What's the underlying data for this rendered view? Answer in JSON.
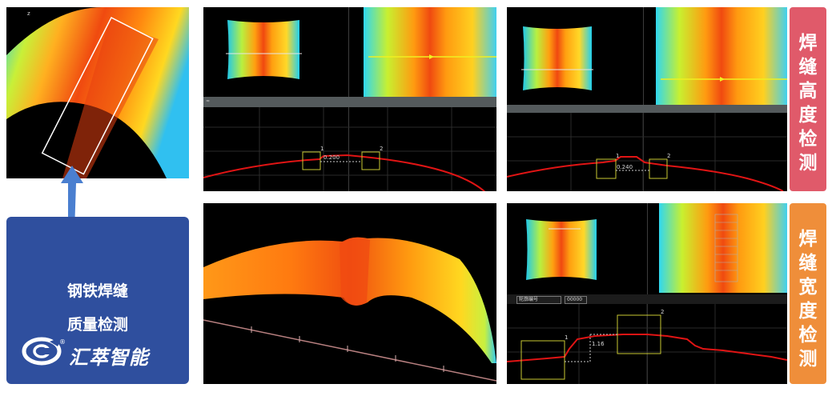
{
  "info_box": {
    "line1": "钢铁焊缝",
    "line2": "质量检测",
    "brand_name": "汇萃智能",
    "logo_icon": "c-swoosh-logo-icon",
    "reg_mark": "®",
    "color": "#2f4f9e"
  },
  "bands": {
    "height": {
      "chars": [
        "焊",
        "缝",
        "高",
        "度",
        "检",
        "测"
      ],
      "color": "#e05a6a"
    },
    "width": {
      "chars": [
        "焊",
        "缝",
        "宽",
        "度",
        "检",
        "测"
      ],
      "color": "#ef8e3a"
    }
  },
  "panels": {
    "height1": {
      "measure_value": "0.200",
      "box1_id": "1",
      "box2_id": "2"
    },
    "height2": {
      "measure_value": "0.240",
      "box1_id": "1",
      "box2_id": "2"
    },
    "width1": {
      "measure_value": "1.16",
      "select_text": "轮廓编号",
      "input_value": "00000",
      "box1_id": "1",
      "box2_id": "2"
    }
  },
  "colors": {
    "profile_line": "#e01414",
    "roi_box": "#c8c832",
    "arrow": "#4a7fd0"
  }
}
